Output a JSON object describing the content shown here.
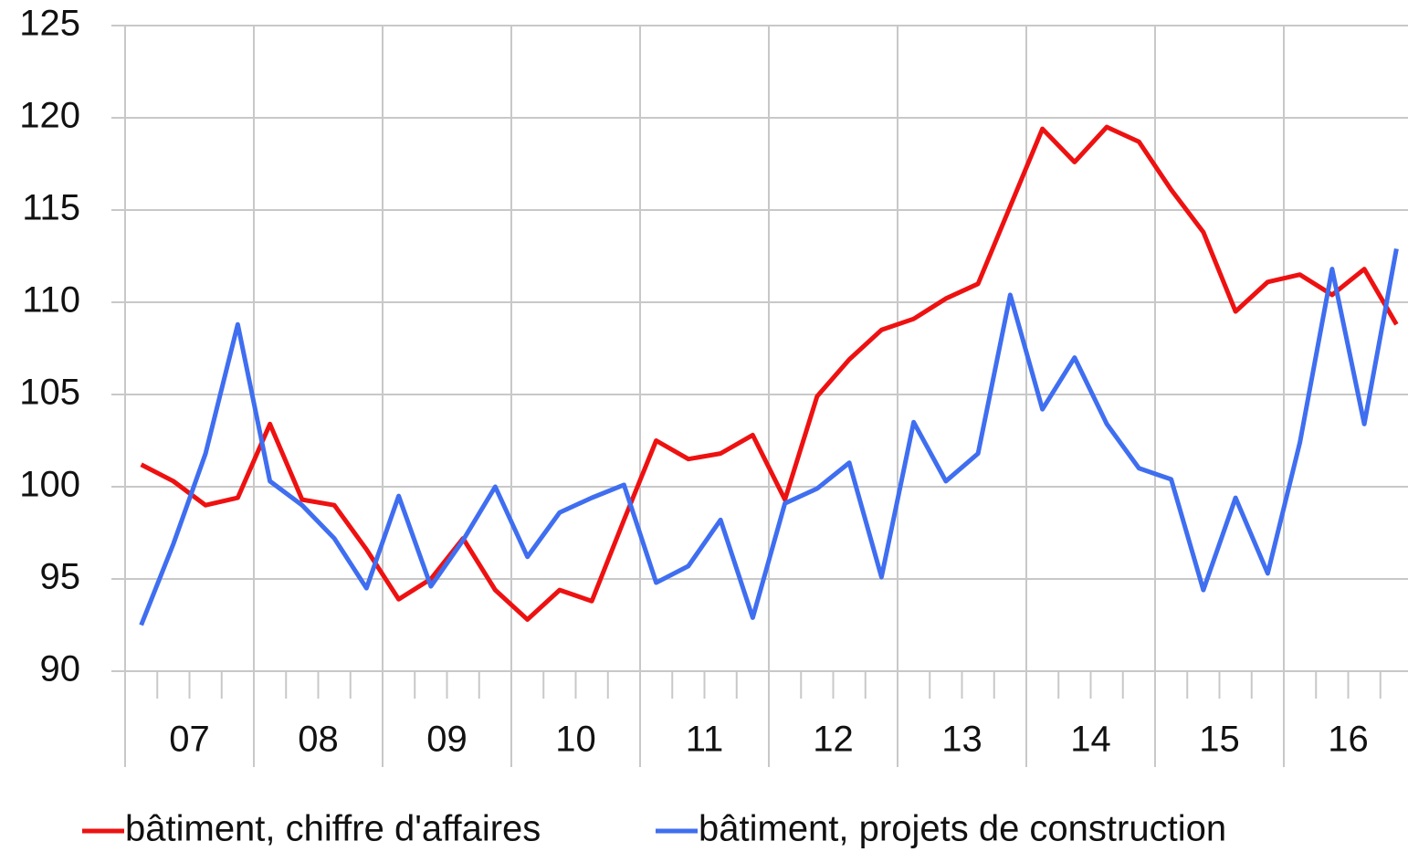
{
  "chart_data": {
    "type": "line",
    "categories": [
      null,
      null,
      null,
      null,
      null,
      null,
      null,
      null,
      null,
      null,
      null,
      null,
      null,
      null,
      null,
      null,
      null,
      null,
      null,
      null,
      null,
      null,
      null,
      null,
      null,
      null,
      null,
      null,
      null,
      null,
      null,
      null,
      null,
      null,
      null,
      null,
      null,
      null,
      null,
      null
    ],
    "groups": [
      "07",
      "08",
      "09",
      "10",
      "11",
      "12",
      "13",
      "14",
      "15",
      "16"
    ],
    "series": [
      {
        "name": "bâtiment, chiffre d'affaires",
        "color": "#ee1111",
        "values": [
          101.2,
          100.3,
          99.0,
          99.4,
          103.4,
          99.3,
          99.0,
          96.6,
          93.9,
          95.0,
          97.2,
          94.4,
          92.8,
          94.4,
          93.8,
          98.2,
          102.5,
          101.5,
          101.8,
          102.8,
          99.3,
          104.9,
          106.9,
          108.5,
          109.1,
          110.2,
          111.0,
          115.2,
          119.4,
          117.6,
          119.5,
          118.7,
          116.1,
          113.8,
          109.5,
          111.1,
          111.5,
          110.4,
          111.8,
          108.8
        ]
      },
      {
        "name": "bâtiment, projets de construction",
        "color": "#3f6ef0",
        "values": [
          92.5,
          96.9,
          101.8,
          108.8,
          100.3,
          99.0,
          97.2,
          94.5,
          99.5,
          94.6,
          97.1,
          100.0,
          96.2,
          98.6,
          99.4,
          100.1,
          94.8,
          95.7,
          98.2,
          92.9,
          99.1,
          99.9,
          101.3,
          95.1,
          103.5,
          100.3,
          101.8,
          110.4,
          104.2,
          107.0,
          103.4,
          101.0,
          100.4,
          94.4,
          99.4,
          95.3,
          102.4,
          111.8,
          103.4,
          112.9
        ]
      }
    ],
    "ylim": [
      90,
      125
    ],
    "yticks": [
      90,
      95,
      100,
      105,
      110,
      115,
      120,
      125
    ],
    "grid": true,
    "legend": "bottom"
  }
}
